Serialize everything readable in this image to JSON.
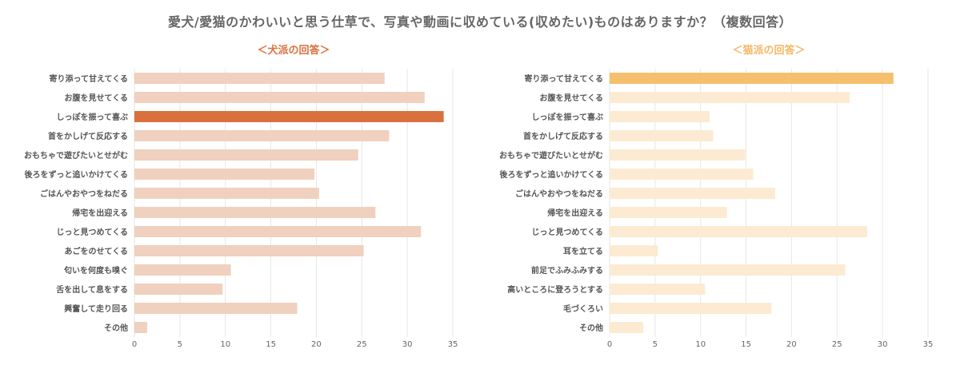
{
  "title": "愛犬/愛猫のかわいいと思う仕草で、写真や動画に収めている(収めたい)ものはありますか？（複数回答）",
  "colors": {
    "dog_bar": "#f0d0be",
    "dog_highlight": "#d9703d",
    "cat_bar": "#fcebd2",
    "cat_highlight": "#f5bf6e",
    "grid": "#e6e6e6"
  },
  "chart_data": [
    {
      "type": "bar",
      "orientation": "horizontal",
      "title": "＜犬派の回答＞",
      "categories": [
        "寄り添って甘えてくる",
        "お腹を見せてくる",
        "しっぽを振って喜ぶ",
        "首をかしげて反応する",
        "おもちゃで遊びたいとせがむ",
        "後ろをずっと追いかけてくる",
        "ごはんやおやつをねだる",
        "帰宅を出迎える",
        "じっと見つめてくる",
        "あごをのせてくる",
        "匂いを何度も嗅ぐ",
        "舌を出して息をする",
        "興奮して走り回る",
        "その他"
      ],
      "values": [
        27.5,
        31.9,
        34.0,
        28.0,
        24.6,
        19.8,
        20.3,
        26.5,
        31.5,
        25.2,
        10.6,
        9.7,
        17.9,
        1.4
      ],
      "highlight_index": 2,
      "xlim": [
        0,
        35
      ],
      "xticks": [
        0,
        5,
        10,
        15,
        20,
        25,
        30,
        35
      ],
      "grid": true
    },
    {
      "type": "bar",
      "orientation": "horizontal",
      "title": "＜猫派の回答＞",
      "categories": [
        "寄り添って甘えてくる",
        "お腹を見せてくる",
        "しっぽを振って喜ぶ",
        "首をかしげて反応する",
        "おもちゃで遊びたいとせがむ",
        "後ろをずっと追いかけてくる",
        "ごはんやおやつをねだる",
        "帰宅を出迎える",
        "じっと見つめてくる",
        "耳を立てる",
        "前足でふみふみする",
        "高いところに登ろうとする",
        "毛づくろい",
        "その他"
      ],
      "values": [
        31.2,
        26.4,
        11.0,
        11.4,
        14.9,
        15.8,
        18.2,
        12.9,
        28.3,
        5.3,
        25.9,
        10.5,
        17.8,
        3.7
      ],
      "highlight_index": 0,
      "xlim": [
        0,
        35
      ],
      "xticks": [
        0,
        5,
        10,
        15,
        20,
        25,
        30,
        35
      ],
      "grid": true
    }
  ]
}
